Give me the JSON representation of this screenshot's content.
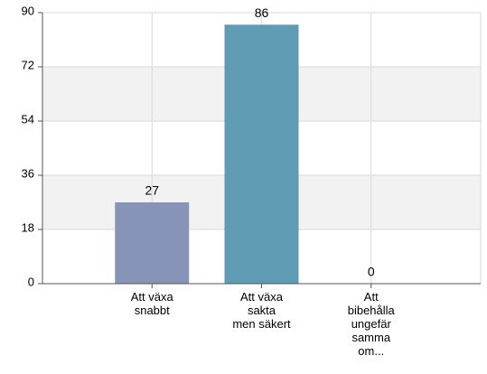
{
  "chart_data": {
    "type": "bar",
    "categories": [
      "Att växa\nsnabbt",
      "Att växa\nsakta\nmen säkert",
      "Att\nbibehålla\nungefär\nsamma\nom..."
    ],
    "values": [
      27,
      86,
      0
    ],
    "colors": [
      "#8794b8",
      "#5f9bb3",
      "#5f9bb3"
    ],
    "ylim": [
      0,
      90
    ],
    "yticks": [
      0,
      18,
      36,
      54,
      72,
      90
    ],
    "grid": true,
    "alternating_bands": true
  }
}
